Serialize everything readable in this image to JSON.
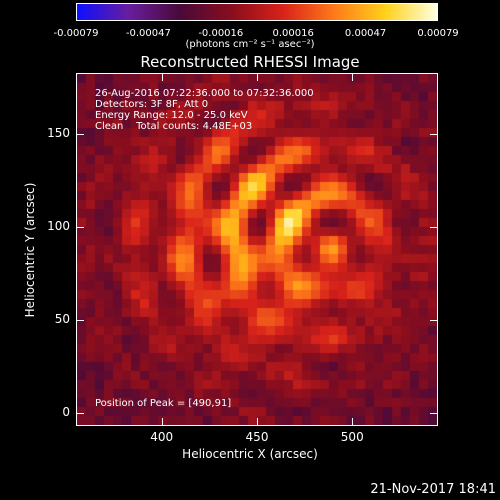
{
  "colorbar": {
    "ticks": [
      "-0.00079",
      "-0.00047",
      "-0.00016",
      "0.00016",
      "0.00047",
      "0.00079"
    ],
    "units": "(photons cm⁻² s⁻¹ asec⁻²)"
  },
  "chart_data": {
    "type": "heatmap",
    "title": "Reconstructed RHESSI Image",
    "xlabel": "Heliocentric X (arcsec)",
    "ylabel": "Heliocentric Y (arcsec)",
    "xlim": [
      355,
      545
    ],
    "ylim": [
      -7,
      183
    ],
    "x_ticks": [
      "400",
      "450",
      "500"
    ],
    "y_ticks": [
      "0",
      "50",
      "100",
      "150"
    ],
    "x_tick_values": [
      400,
      450,
      500
    ],
    "y_tick_values": [
      0,
      50,
      100,
      150
    ],
    "colorbar_range": [
      -0.00079,
      0.00079
    ],
    "peak": [
      490,
      91
    ],
    "colormap": [
      "#1010ff",
      "#6a1ea0",
      "#4a0a3a",
      "#8a0e1e",
      "#d9231a",
      "#ff7a1a",
      "#ffd21a",
      "#ffffe0"
    ]
  },
  "info": {
    "time_range": "26-Aug-2016 07:22:36.000 to 07:32:36.000",
    "detectors": "Detectors: 3F 8F, Att 0",
    "energy": "Energy Range: 12.0 - 25.0 keV",
    "clean": "Clean    Total counts: 4.48E+03",
    "peak_text": "Position of Peak = [490,91]"
  },
  "timestamp": "21-Nov-2017 18:41"
}
